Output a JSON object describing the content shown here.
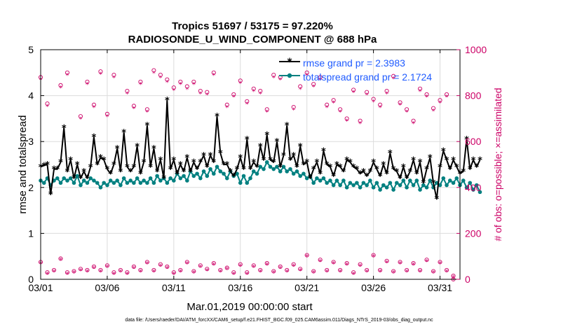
{
  "chart_data": {
    "type": "line",
    "title": "Tropics 51697 / 53175 = 97.220%",
    "subtitle": "RADIOSONDE_U_WIND_COMPONENT @ 688 hPa",
    "xlabel": "Mar.01,2019 00:00:00 start",
    "ylabel": "rmse and totalspread",
    "y2label": "# of obs: o=possible; ×=assimilated",
    "footer": "data file: /Users/raeder/DAI/ATM_forcXX/CAM6_setup/f.e21.FHIST_BGC.f09_025.CAM6assim.011/Diags_NTrS_2019-03/obs_diag_output.nc",
    "xlim": [
      1,
      32.5
    ],
    "ylim": [
      0,
      5
    ],
    "y2lim": [
      0,
      1000
    ],
    "xtick_positions": [
      1,
      6,
      11,
      16,
      21,
      26,
      31
    ],
    "xtick_labels": [
      "03/01",
      "03/06",
      "03/11",
      "03/16",
      "03/21",
      "03/26",
      "03/31"
    ],
    "yticks": [
      0,
      1,
      2,
      3,
      4,
      5
    ],
    "y2ticks": [
      0,
      200,
      400,
      600,
      800,
      1000
    ],
    "grid": true,
    "legend_location": "top-right",
    "colors": {
      "rmse": "#000000",
      "spread": "#008080",
      "obs": "#cc0066",
      "legend_text": "#1f5bff"
    },
    "step_days": 0.25,
    "x_start": 1.0,
    "series": [
      {
        "name": "rmse grand pr = 2.3983",
        "axis": "left",
        "values": [
          2.45,
          2.48,
          2.5,
          1.85,
          2.4,
          2.4,
          2.55,
          3.3,
          2.35,
          2.6,
          2.2,
          2.5,
          2.2,
          2.35,
          2.2,
          2.45,
          3.1,
          2.5,
          2.65,
          2.6,
          2.4,
          2.3,
          2.5,
          2.85,
          2.35,
          3.2,
          2.45,
          2.35,
          2.45,
          2.9,
          2.3,
          2.55,
          3.35,
          2.45,
          2.85,
          2.35,
          2.6,
          2.2,
          3.9,
          2.4,
          2.6,
          2.3,
          2.5,
          2.35,
          2.65,
          2.35,
          2.55,
          2.4,
          2.55,
          2.7,
          2.45,
          2.7,
          2.55,
          3.55,
          2.75,
          2.5,
          2.5,
          2.35,
          2.25,
          2.4,
          2.65,
          2.4,
          3.05,
          2.4,
          2.55,
          2.45,
          2.9,
          2.6,
          3.15,
          2.6,
          2.55,
          3.0,
          2.45,
          2.7,
          3.35,
          2.6,
          2.7,
          2.45,
          2.9,
          2.5,
          2.55,
          2.2,
          2.4,
          2.55,
          2.3,
          2.8,
          2.5,
          2.45,
          2.25,
          2.5,
          2.45,
          2.35,
          2.6,
          2.55,
          2.45,
          2.4,
          2.3,
          2.35,
          2.25,
          2.35,
          2.55,
          2.4,
          2.25,
          2.5,
          2.3,
          2.75,
          2.4,
          2.35,
          2.2,
          2.45,
          2.2,
          2.35,
          2.6,
          2.3,
          2.55,
          2.1,
          2.4,
          2.65,
          2.1,
          1.75,
          2.45,
          2.8,
          2.6,
          2.4,
          2.6,
          2.45,
          2.3,
          2.35,
          3.05,
          2.4,
          2.6,
          2.45,
          2.6
        ]
      },
      {
        "name": "totalspread grand pr = 2.1724",
        "axis": "left",
        "values": [
          2.15,
          2.1,
          2.2,
          2.05,
          2.15,
          2.2,
          2.1,
          2.2,
          2.15,
          2.2,
          2.1,
          2.25,
          2.05,
          2.15,
          2.1,
          2.2,
          2.15,
          2.1,
          2.0,
          2.1,
          2.05,
          2.15,
          2.1,
          2.15,
          2.05,
          2.2,
          2.1,
          2.15,
          2.1,
          2.2,
          2.1,
          2.15,
          2.1,
          2.2,
          2.1,
          2.25,
          2.15,
          2.2,
          2.1,
          2.2,
          2.15,
          2.3,
          2.2,
          2.25,
          2.15,
          2.35,
          2.25,
          2.3,
          2.2,
          2.35,
          2.25,
          2.4,
          2.3,
          2.45,
          2.35,
          2.3,
          2.2,
          2.35,
          2.25,
          2.3,
          2.1,
          2.25,
          2.1,
          2.2,
          2.35,
          2.3,
          2.45,
          2.4,
          2.55,
          2.45,
          2.4,
          2.45,
          2.35,
          2.45,
          2.35,
          2.4,
          2.3,
          2.35,
          2.25,
          2.3,
          2.2,
          2.25,
          2.1,
          2.2,
          2.15,
          2.2,
          2.1,
          2.15,
          2.05,
          2.15,
          2.05,
          2.15,
          2.0,
          2.1,
          2.05,
          2.1,
          2.0,
          2.1,
          2.05,
          2.15,
          2.0,
          2.1,
          1.95,
          2.05,
          2.0,
          2.1,
          1.95,
          2.1,
          2.05,
          2.15,
          2.0,
          2.15,
          2.05,
          2.15,
          1.95,
          2.05,
          2.0,
          2.15,
          2.0,
          2.1,
          2.05,
          2.2,
          2.05,
          2.15,
          2.1,
          2.2,
          2.05,
          2.15,
          2.0,
          2.1,
          1.95,
          2.05,
          1.9
        ]
      }
    ],
    "obs_possible": [
      {
        "x": 1.0,
        "y": 880
      },
      {
        "x": 1.5,
        "y": 765
      },
      {
        "x": 2.5,
        "y": 845
      },
      {
        "x": 3.0,
        "y": 900
      },
      {
        "x": 4.0,
        "y": 710
      },
      {
        "x": 4.5,
        "y": 860
      },
      {
        "x": 5.0,
        "y": 760
      },
      {
        "x": 5.5,
        "y": 905
      },
      {
        "x": 6.0,
        "y": 720
      },
      {
        "x": 6.5,
        "y": 890
      },
      {
        "x": 7.5,
        "y": 820
      },
      {
        "x": 8.0,
        "y": 755
      },
      {
        "x": 8.5,
        "y": 860
      },
      {
        "x": 9.0,
        "y": 740
      },
      {
        "x": 9.5,
        "y": 910
      },
      {
        "x": 10.0,
        "y": 890
      },
      {
        "x": 10.5,
        "y": 870
      },
      {
        "x": 11.0,
        "y": 835
      },
      {
        "x": 11.5,
        "y": 860
      },
      {
        "x": 12.0,
        "y": 840
      },
      {
        "x": 12.5,
        "y": 860
      },
      {
        "x": 13.0,
        "y": 820
      },
      {
        "x": 13.5,
        "y": 815
      },
      {
        "x": 14.0,
        "y": 900
      },
      {
        "x": 15.0,
        "y": 760
      },
      {
        "x": 15.5,
        "y": 805
      },
      {
        "x": 16.0,
        "y": 865
      },
      {
        "x": 16.5,
        "y": 775
      },
      {
        "x": 17.0,
        "y": 830
      },
      {
        "x": 17.5,
        "y": 820
      },
      {
        "x": 18.0,
        "y": 740
      },
      {
        "x": 18.5,
        "y": 890
      },
      {
        "x": 19.0,
        "y": 880
      },
      {
        "x": 20.0,
        "y": 750
      },
      {
        "x": 20.5,
        "y": 840
      },
      {
        "x": 21.0,
        "y": 900
      },
      {
        "x": 21.5,
        "y": 850
      },
      {
        "x": 22.0,
        "y": 880
      },
      {
        "x": 22.5,
        "y": 760
      },
      {
        "x": 23.0,
        "y": 780
      },
      {
        "x": 23.5,
        "y": 740
      },
      {
        "x": 24.0,
        "y": 700
      },
      {
        "x": 24.5,
        "y": 825
      },
      {
        "x": 25.0,
        "y": 690
      },
      {
        "x": 25.5,
        "y": 815
      },
      {
        "x": 26.0,
        "y": 785
      },
      {
        "x": 26.5,
        "y": 760
      },
      {
        "x": 27.0,
        "y": 820
      },
      {
        "x": 27.5,
        "y": 885
      },
      {
        "x": 28.0,
        "y": 770
      },
      {
        "x": 28.5,
        "y": 740
      },
      {
        "x": 29.0,
        "y": 690
      },
      {
        "x": 29.5,
        "y": 830
      },
      {
        "x": 30.0,
        "y": 805
      },
      {
        "x": 30.5,
        "y": 745
      },
      {
        "x": 31.0,
        "y": 780
      },
      {
        "x": 31.5,
        "y": 805
      },
      {
        "x": 32.0,
        "y": 0
      }
    ],
    "obs_assimilated": [
      {
        "x": 1.0,
        "y": 870
      },
      {
        "x": 1.5,
        "y": 755
      },
      {
        "x": 2.5,
        "y": 835
      },
      {
        "x": 3.0,
        "y": 890
      },
      {
        "x": 4.0,
        "y": 700
      },
      {
        "x": 4.5,
        "y": 850
      },
      {
        "x": 5.0,
        "y": 750
      },
      {
        "x": 5.5,
        "y": 895
      },
      {
        "x": 6.0,
        "y": 710
      },
      {
        "x": 6.5,
        "y": 880
      },
      {
        "x": 7.5,
        "y": 810
      },
      {
        "x": 8.0,
        "y": 745
      },
      {
        "x": 8.5,
        "y": 850
      },
      {
        "x": 9.0,
        "y": 730
      },
      {
        "x": 9.5,
        "y": 900
      },
      {
        "x": 10.0,
        "y": 880
      },
      {
        "x": 10.5,
        "y": 860
      },
      {
        "x": 11.0,
        "y": 825
      },
      {
        "x": 11.5,
        "y": 850
      },
      {
        "x": 12.0,
        "y": 830
      },
      {
        "x": 12.5,
        "y": 850
      },
      {
        "x": 13.0,
        "y": 810
      },
      {
        "x": 13.5,
        "y": 805
      },
      {
        "x": 14.0,
        "y": 890
      },
      {
        "x": 15.0,
        "y": 750
      },
      {
        "x": 15.5,
        "y": 795
      },
      {
        "x": 16.0,
        "y": 855
      },
      {
        "x": 16.5,
        "y": 765
      },
      {
        "x": 17.0,
        "y": 820
      },
      {
        "x": 17.5,
        "y": 810
      },
      {
        "x": 18.0,
        "y": 730
      },
      {
        "x": 18.5,
        "y": 880
      },
      {
        "x": 19.0,
        "y": 870
      },
      {
        "x": 20.0,
        "y": 740
      },
      {
        "x": 20.5,
        "y": 830
      },
      {
        "x": 21.0,
        "y": 890
      },
      {
        "x": 21.5,
        "y": 840
      },
      {
        "x": 22.0,
        "y": 870
      },
      {
        "x": 22.5,
        "y": 750
      },
      {
        "x": 23.0,
        "y": 770
      },
      {
        "x": 23.5,
        "y": 730
      },
      {
        "x": 24.0,
        "y": 690
      },
      {
        "x": 24.5,
        "y": 815
      },
      {
        "x": 25.0,
        "y": 680
      },
      {
        "x": 25.5,
        "y": 805
      },
      {
        "x": 26.0,
        "y": 775
      },
      {
        "x": 26.5,
        "y": 750
      },
      {
        "x": 27.0,
        "y": 810
      },
      {
        "x": 27.5,
        "y": 875
      },
      {
        "x": 28.0,
        "y": 760
      },
      {
        "x": 28.5,
        "y": 730
      },
      {
        "x": 29.0,
        "y": 680
      },
      {
        "x": 29.5,
        "y": 820
      },
      {
        "x": 30.0,
        "y": 795
      },
      {
        "x": 30.5,
        "y": 735
      },
      {
        "x": 31.0,
        "y": 770
      },
      {
        "x": 31.5,
        "y": 795
      },
      {
        "x": 32.0,
        "y": 0
      }
    ],
    "obs_possible_low": [
      {
        "x": 1.0,
        "y": 75
      },
      {
        "x": 1.5,
        "y": 30
      },
      {
        "x": 2.0,
        "y": 40
      },
      {
        "x": 2.5,
        "y": 90
      },
      {
        "x": 3.0,
        "y": 30
      },
      {
        "x": 3.5,
        "y": 35
      },
      {
        "x": 4.0,
        "y": 45
      },
      {
        "x": 4.5,
        "y": 40
      },
      {
        "x": 5.0,
        "y": 55
      },
      {
        "x": 5.5,
        "y": 40
      },
      {
        "x": 6.0,
        "y": 60
      },
      {
        "x": 6.5,
        "y": 30
      },
      {
        "x": 7.0,
        "y": 40
      },
      {
        "x": 7.5,
        "y": 30
      },
      {
        "x": 8.0,
        "y": 55
      },
      {
        "x": 8.5,
        "y": 40
      },
      {
        "x": 9.0,
        "y": 75
      },
      {
        "x": 9.5,
        "y": 40
      },
      {
        "x": 10.0,
        "y": 65
      },
      {
        "x": 10.5,
        "y": 55
      },
      {
        "x": 11.0,
        "y": 30
      },
      {
        "x": 11.5,
        "y": 40
      },
      {
        "x": 12.0,
        "y": 75
      },
      {
        "x": 12.5,
        "y": 35
      },
      {
        "x": 13.0,
        "y": 60
      },
      {
        "x": 13.5,
        "y": 45
      },
      {
        "x": 14.0,
        "y": 70
      },
      {
        "x": 14.5,
        "y": 40
      },
      {
        "x": 15.0,
        "y": 50
      },
      {
        "x": 15.5,
        "y": 30
      },
      {
        "x": 16.0,
        "y": 65
      },
      {
        "x": 16.5,
        "y": 30
      },
      {
        "x": 17.0,
        "y": 60
      },
      {
        "x": 17.5,
        "y": 40
      },
      {
        "x": 18.0,
        "y": 70
      },
      {
        "x": 18.5,
        "y": 35
      },
      {
        "x": 19.0,
        "y": 55
      },
      {
        "x": 19.5,
        "y": 40
      },
      {
        "x": 20.0,
        "y": 65
      },
      {
        "x": 20.5,
        "y": 45
      },
      {
        "x": 21.0,
        "y": 105
      },
      {
        "x": 21.5,
        "y": 35
      },
      {
        "x": 22.0,
        "y": 85
      },
      {
        "x": 22.5,
        "y": 40
      },
      {
        "x": 23.0,
        "y": 75
      },
      {
        "x": 23.5,
        "y": 40
      },
      {
        "x": 24.0,
        "y": 70
      },
      {
        "x": 24.5,
        "y": 30
      },
      {
        "x": 25.0,
        "y": 65
      },
      {
        "x": 25.5,
        "y": 40
      },
      {
        "x": 26.0,
        "y": 105
      },
      {
        "x": 26.5,
        "y": 40
      },
      {
        "x": 27.0,
        "y": 80
      },
      {
        "x": 27.5,
        "y": 35
      },
      {
        "x": 28.0,
        "y": 75
      },
      {
        "x": 28.5,
        "y": 40
      },
      {
        "x": 29.0,
        "y": 70
      },
      {
        "x": 29.5,
        "y": 40
      },
      {
        "x": 30.0,
        "y": 85
      },
      {
        "x": 30.5,
        "y": 35
      },
      {
        "x": 31.0,
        "y": 75
      },
      {
        "x": 31.5,
        "y": 40
      },
      {
        "x": 32.0,
        "y": 15
      }
    ],
    "obs_assimilated_low": [
      {
        "x": 1.0,
        "y": 70
      },
      {
        "x": 1.5,
        "y": 25
      },
      {
        "x": 2.0,
        "y": 35
      },
      {
        "x": 2.5,
        "y": 85
      },
      {
        "x": 3.0,
        "y": 25
      },
      {
        "x": 3.5,
        "y": 30
      },
      {
        "x": 4.0,
        "y": 40
      },
      {
        "x": 4.5,
        "y": 35
      },
      {
        "x": 5.0,
        "y": 50
      },
      {
        "x": 5.5,
        "y": 35
      },
      {
        "x": 6.0,
        "y": 55
      },
      {
        "x": 6.5,
        "y": 25
      },
      {
        "x": 7.0,
        "y": 35
      },
      {
        "x": 7.5,
        "y": 25
      },
      {
        "x": 8.0,
        "y": 50
      },
      {
        "x": 8.5,
        "y": 35
      },
      {
        "x": 9.0,
        "y": 70
      },
      {
        "x": 9.5,
        "y": 35
      },
      {
        "x": 10.0,
        "y": 60
      },
      {
        "x": 10.5,
        "y": 50
      },
      {
        "x": 11.0,
        "y": 25
      },
      {
        "x": 11.5,
        "y": 35
      },
      {
        "x": 12.0,
        "y": 70
      },
      {
        "x": 12.5,
        "y": 30
      },
      {
        "x": 13.0,
        "y": 55
      },
      {
        "x": 13.5,
        "y": 40
      },
      {
        "x": 14.0,
        "y": 65
      },
      {
        "x": 14.5,
        "y": 35
      },
      {
        "x": 15.0,
        "y": 45
      },
      {
        "x": 15.5,
        "y": 25
      },
      {
        "x": 16.0,
        "y": 60
      },
      {
        "x": 16.5,
        "y": 25
      },
      {
        "x": 17.0,
        "y": 55
      },
      {
        "x": 17.5,
        "y": 35
      },
      {
        "x": 18.0,
        "y": 65
      },
      {
        "x": 18.5,
        "y": 30
      },
      {
        "x": 19.0,
        "y": 50
      },
      {
        "x": 19.5,
        "y": 35
      },
      {
        "x": 20.0,
        "y": 60
      },
      {
        "x": 20.5,
        "y": 40
      },
      {
        "x": 21.0,
        "y": 100
      },
      {
        "x": 21.5,
        "y": 30
      },
      {
        "x": 22.0,
        "y": 80
      },
      {
        "x": 22.5,
        "y": 35
      },
      {
        "x": 23.0,
        "y": 70
      },
      {
        "x": 23.5,
        "y": 35
      },
      {
        "x": 24.0,
        "y": 65
      },
      {
        "x": 24.5,
        "y": 25
      },
      {
        "x": 25.0,
        "y": 60
      },
      {
        "x": 25.5,
        "y": 35
      },
      {
        "x": 26.0,
        "y": 100
      },
      {
        "x": 26.5,
        "y": 35
      },
      {
        "x": 27.0,
        "y": 75
      },
      {
        "x": 27.5,
        "y": 30
      },
      {
        "x": 28.0,
        "y": 70
      },
      {
        "x": 28.5,
        "y": 35
      },
      {
        "x": 29.0,
        "y": 65
      },
      {
        "x": 29.5,
        "y": 35
      },
      {
        "x": 30.0,
        "y": 80
      },
      {
        "x": 30.5,
        "y": 30
      },
      {
        "x": 31.0,
        "y": 70
      },
      {
        "x": 31.5,
        "y": 35
      },
      {
        "x": 32.0,
        "y": 10
      }
    ]
  }
}
